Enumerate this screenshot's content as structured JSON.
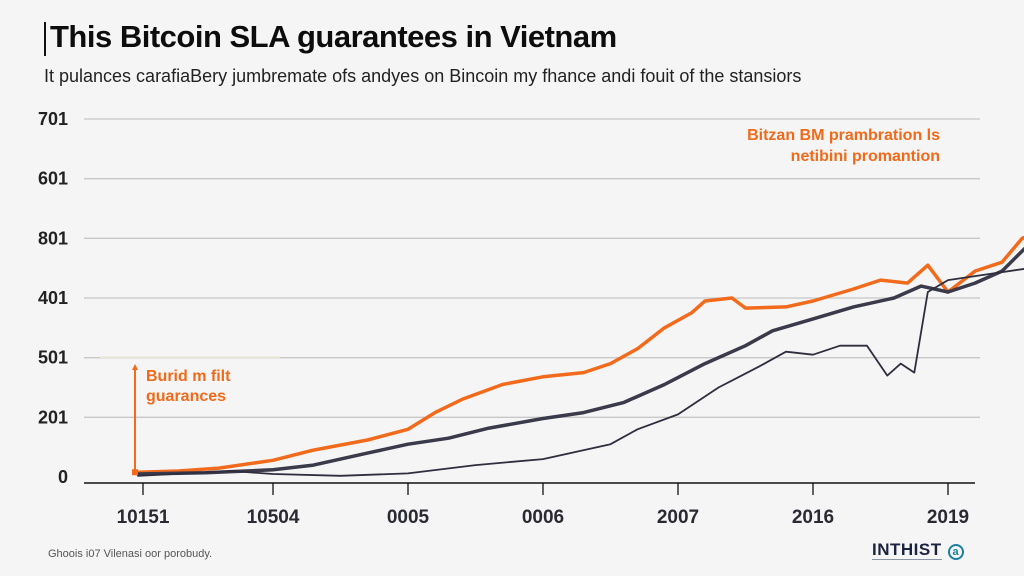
{
  "header": {
    "title": "This Bitcoin SLA guarantees in Vietnam",
    "subtitle": "It pulances carafiaBery jumbremate ofs andyes on Bincoin my fhance andi fouit of the stansiors"
  },
  "footer": {
    "source": "Ghoois i07 Vilenasi oor porobudy.",
    "logo_text": "INTHIST",
    "logo_mark": "a"
  },
  "colors": {
    "orange": "#f26b1d",
    "dark": "#3a3a4a",
    "grid": "#c8c8c8",
    "axis": "#111111"
  },
  "chart_data": {
    "type": "line",
    "title": "This Bitcoin SLA guarantees in Vietnam",
    "xlabel": "",
    "ylabel": "",
    "y_tick_labels": [
      "0",
      "201",
      "501",
      "401",
      "801",
      "601",
      "701"
    ],
    "y_grid_index_range": [
      0,
      6
    ],
    "x_tick_labels": [
      "10151",
      "10504",
      "0005",
      "0006",
      "2007",
      "2016",
      "2019"
    ],
    "x_index_range": [
      0,
      6
    ],
    "grid": true,
    "legend": "none",
    "series": [
      {
        "name": "orange-series",
        "color": "#f26b1d",
        "points": [
          [
            0,
            0.08
          ],
          [
            0.3,
            0.1
          ],
          [
            0.6,
            0.15
          ],
          [
            1.0,
            0.28
          ],
          [
            1.3,
            0.45
          ],
          [
            1.7,
            0.62
          ],
          [
            2.0,
            0.8
          ],
          [
            2.2,
            1.08
          ],
          [
            2.4,
            1.3
          ],
          [
            2.7,
            1.55
          ],
          [
            3.0,
            1.68
          ],
          [
            3.3,
            1.75
          ],
          [
            3.5,
            1.9
          ],
          [
            3.7,
            2.15
          ],
          [
            3.9,
            2.5
          ],
          [
            4.1,
            2.75
          ],
          [
            4.2,
            2.95
          ],
          [
            4.4,
            3.0
          ],
          [
            4.5,
            2.83
          ],
          [
            4.8,
            2.85
          ],
          [
            5.0,
            2.95
          ],
          [
            5.3,
            3.15
          ],
          [
            5.5,
            3.3
          ],
          [
            5.7,
            3.25
          ],
          [
            5.85,
            3.55
          ],
          [
            6.0,
            3.1
          ],
          [
            6.2,
            3.45
          ],
          [
            6.4,
            3.6
          ],
          [
            6.55,
            4.0
          ],
          [
            6.7,
            4.15
          ]
        ]
      },
      {
        "name": "dark-series",
        "color": "#3a3a4a",
        "points": [
          [
            0,
            0.05
          ],
          [
            0.5,
            0.07
          ],
          [
            1.0,
            0.12
          ],
          [
            1.3,
            0.2
          ],
          [
            1.7,
            0.4
          ],
          [
            2.0,
            0.55
          ],
          [
            2.3,
            0.65
          ],
          [
            2.6,
            0.82
          ],
          [
            3.0,
            0.98
          ],
          [
            3.3,
            1.08
          ],
          [
            3.6,
            1.25
          ],
          [
            3.9,
            1.55
          ],
          [
            4.2,
            1.9
          ],
          [
            4.5,
            2.2
          ],
          [
            4.7,
            2.45
          ],
          [
            5.0,
            2.65
          ],
          [
            5.3,
            2.85
          ],
          [
            5.6,
            3.0
          ],
          [
            5.8,
            3.2
          ],
          [
            6.0,
            3.1
          ],
          [
            6.2,
            3.25
          ],
          [
            6.4,
            3.45
          ],
          [
            6.6,
            3.9
          ]
        ]
      },
      {
        "name": "thin-dark-series",
        "color": "#2e2e3e",
        "points": [
          [
            0,
            0.02
          ],
          [
            0.7,
            0.1
          ],
          [
            1.0,
            0.05
          ],
          [
            1.5,
            0.02
          ],
          [
            2.0,
            0.06
          ],
          [
            2.5,
            0.2
          ],
          [
            3.0,
            0.3
          ],
          [
            3.5,
            0.55
          ],
          [
            3.7,
            0.8
          ],
          [
            4.0,
            1.05
          ],
          [
            4.3,
            1.5
          ],
          [
            4.6,
            1.85
          ],
          [
            4.8,
            2.1
          ],
          [
            5.0,
            2.05
          ],
          [
            5.2,
            2.2
          ],
          [
            5.4,
            2.2
          ],
          [
            5.55,
            1.7
          ],
          [
            5.65,
            1.9
          ],
          [
            5.75,
            1.75
          ],
          [
            5.85,
            3.1
          ],
          [
            6.0,
            3.3
          ],
          [
            6.3,
            3.4
          ],
          [
            6.6,
            3.5
          ],
          [
            6.7,
            3.9
          ]
        ]
      }
    ],
    "annotations": [
      {
        "text_lines": [
          "Bitzan BM prambration ls",
          "netibini promantion"
        ],
        "anchor": [
          6.7,
          4.15
        ],
        "placement": "top-right",
        "color": "#f26b1d"
      },
      {
        "text_lines": [
          "Burid m filt",
          "guarances"
        ],
        "anchor": [
          0,
          0.08
        ],
        "placement": "left",
        "color": "#f26b1d"
      }
    ]
  }
}
